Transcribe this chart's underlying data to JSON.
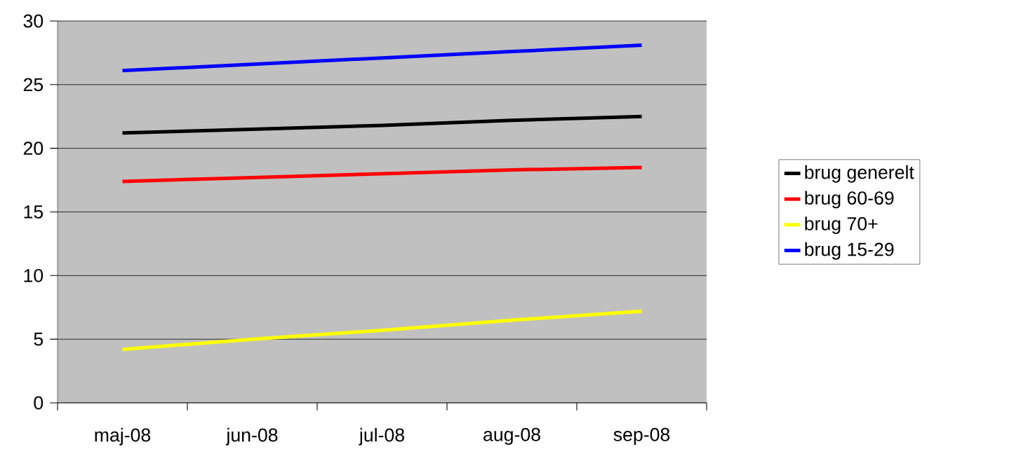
{
  "chart_data": {
    "type": "line",
    "categories": [
      "maj-08",
      "jun-08",
      "jul-08",
      "aug-08",
      "sep-08"
    ],
    "series": [
      {
        "name": "brug generelt",
        "color": "#000000",
        "values": [
          21.2,
          21.5,
          21.8,
          22.2,
          22.5
        ]
      },
      {
        "name": "brug 60-69",
        "color": "#ff0000",
        "values": [
          17.4,
          17.7,
          18.0,
          18.3,
          18.5
        ]
      },
      {
        "name": "brug 70+",
        "color": "#ffff00",
        "values": [
          4.2,
          5.0,
          5.7,
          6.5,
          7.2
        ]
      },
      {
        "name": "brug 15-29",
        "color": "#0000ff",
        "values": [
          26.1,
          26.6,
          27.1,
          27.6,
          28.1
        ]
      }
    ],
    "ylim": [
      0,
      30
    ],
    "yticks": [
      0,
      5,
      10,
      15,
      20,
      25,
      30
    ],
    "grid": "y",
    "legend": "right",
    "marker": "none",
    "line_style": "solid"
  }
}
